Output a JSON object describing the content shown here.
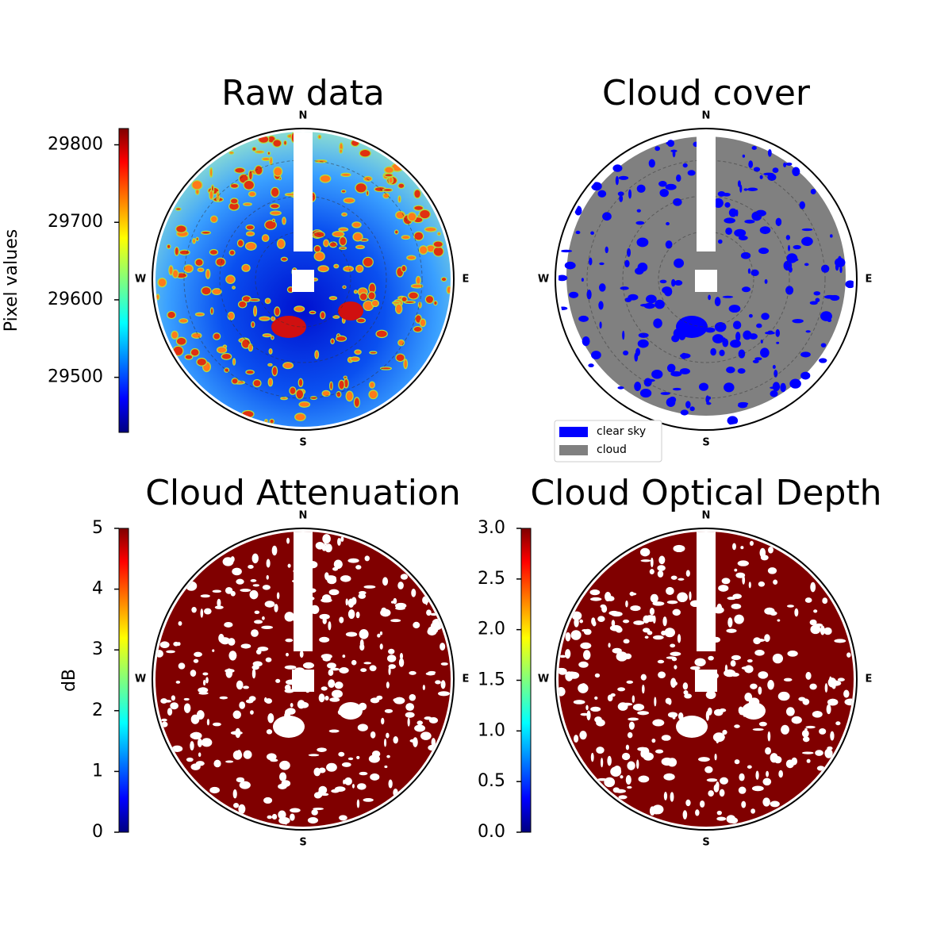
{
  "chart_data": [
    {
      "type": "image",
      "title": "Raw data",
      "directions": [
        "N",
        "E",
        "S",
        "W"
      ],
      "ylabel": "Pixel values",
      "ylim": [
        29429,
        29821
      ],
      "yticks": [
        29500,
        29600,
        29700,
        29800
      ]
    },
    {
      "type": "image",
      "title": "Cloud cover",
      "directions": [
        "N",
        "E",
        "S",
        "W"
      ],
      "series": [
        {
          "name": "clear sky",
          "color": "#0000ff"
        },
        {
          "name": "cloud",
          "color": "#808080"
        }
      ]
    },
    {
      "type": "image",
      "title": "Cloud Attenuation",
      "directions": [
        "N",
        "E",
        "S",
        "W"
      ],
      "ylabel": "dB",
      "ylim": [
        0,
        5
      ],
      "yticks": [
        0,
        1,
        2,
        3,
        4,
        5
      ]
    },
    {
      "type": "image",
      "title": "Cloud Optical Depth",
      "directions": [
        "N",
        "E",
        "S",
        "W"
      ],
      "ylim": [
        0,
        3
      ],
      "yticks": [
        {
          "value": 0,
          "label": "0.0"
        },
        0.5,
        {
          "value": 1,
          "label": "1.0"
        },
        1.5,
        {
          "value": 2,
          "label": "2.0"
        },
        2.5,
        {
          "value": 3,
          "label": "3.0"
        }
      ]
    }
  ]
}
